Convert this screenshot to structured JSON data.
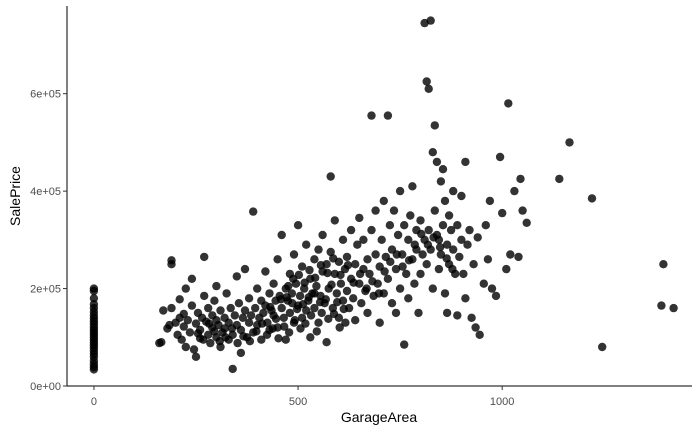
{
  "chart_data": {
    "type": "scatter",
    "title": "",
    "xlabel": "GarageArea",
    "ylabel": "SalePrice",
    "xlim": [
      -66,
      1465
    ],
    "ylim": [
      0,
      780000
    ],
    "x_ticks": [
      {
        "value": 0,
        "label": "0"
      },
      {
        "value": 500,
        "label": "500"
      },
      {
        "value": 1000,
        "label": "1000"
      }
    ],
    "y_ticks": [
      {
        "value": 0,
        "label": "0e+00"
      },
      {
        "value": 200000,
        "label": "2e+05"
      },
      {
        "value": 400000,
        "label": "4e+05"
      },
      {
        "value": 600000,
        "label": "6e+05"
      }
    ],
    "grid": false,
    "legend": "none",
    "point_color": "#000000",
    "point_opacity": 0.8,
    "points": [
      [
        0,
        200000
      ],
      [
        0,
        195000
      ],
      [
        0,
        180000
      ],
      [
        0,
        168000
      ],
      [
        0,
        160000
      ],
      [
        0,
        152000
      ],
      [
        0,
        145000
      ],
      [
        0,
        139000
      ],
      [
        0,
        133000
      ],
      [
        0,
        127000
      ],
      [
        0,
        121000
      ],
      [
        0,
        115000
      ],
      [
        0,
        110000
      ],
      [
        0,
        105000
      ],
      [
        0,
        100000
      ],
      [
        0,
        95000
      ],
      [
        0,
        89000
      ],
      [
        0,
        84000
      ],
      [
        0,
        78000
      ],
      [
        0,
        72000
      ],
      [
        0,
        66000
      ],
      [
        0,
        60000
      ],
      [
        0,
        52000
      ],
      [
        0,
        45000
      ],
      [
        0,
        39000
      ],
      [
        0,
        34000
      ],
      [
        160,
        88000
      ],
      [
        165,
        90000
      ],
      [
        170,
        155000
      ],
      [
        180,
        118000
      ],
      [
        185,
        125000
      ],
      [
        190,
        160000
      ],
      [
        190,
        250000
      ],
      [
        190,
        258000
      ],
      [
        200,
        130000
      ],
      [
        205,
        105000
      ],
      [
        210,
        140000
      ],
      [
        210,
        178000
      ],
      [
        215,
        95000
      ],
      [
        220,
        122000
      ],
      [
        220,
        148000
      ],
      [
        225,
        80000
      ],
      [
        225,
        200000
      ],
      [
        230,
        135000
      ],
      [
        235,
        110000
      ],
      [
        240,
        165000
      ],
      [
        240,
        220000
      ],
      [
        245,
        75000
      ],
      [
        250,
        128000
      ],
      [
        250,
        60000
      ],
      [
        255,
        150000
      ],
      [
        260,
        98000
      ],
      [
        260,
        115000
      ],
      [
        265,
        140000
      ],
      [
        270,
        185000
      ],
      [
        270,
        265000
      ],
      [
        275,
        132000
      ],
      [
        280,
        105000
      ],
      [
        280,
        160000
      ],
      [
        285,
        88000
      ],
      [
        290,
        120000
      ],
      [
        290,
        145000
      ],
      [
        295,
        175000
      ],
      [
        300,
        100000
      ],
      [
        300,
        135000
      ],
      [
        300,
        205000
      ],
      [
        305,
        125000
      ],
      [
        310,
        80000
      ],
      [
        310,
        155000
      ],
      [
        315,
        110000
      ],
      [
        320,
        140000
      ],
      [
        320,
        118000
      ],
      [
        325,
        190000
      ],
      [
        330,
        95000
      ],
      [
        330,
        130000
      ],
      [
        335,
        160000
      ],
      [
        340,
        105000
      ],
      [
        340,
        35000
      ],
      [
        345,
        145000
      ],
      [
        350,
        125000
      ],
      [
        350,
        225000
      ],
      [
        355,
        170000
      ],
      [
        360,
        115000
      ],
      [
        360,
        68000
      ],
      [
        365,
        140000
      ],
      [
        370,
        155000
      ],
      [
        370,
        240000
      ],
      [
        375,
        100000
      ],
      [
        380,
        130000
      ],
      [
        380,
        180000
      ],
      [
        385,
        145000
      ],
      [
        390,
        110000
      ],
      [
        390,
        358000
      ],
      [
        395,
        160000
      ],
      [
        400,
        125000
      ],
      [
        400,
        200000
      ],
      [
        405,
        140000
      ],
      [
        410,
        175000
      ],
      [
        410,
        95000
      ],
      [
        415,
        150000
      ],
      [
        420,
        165000
      ],
      [
        420,
        235000
      ],
      [
        425,
        130000
      ],
      [
        430,
        190000
      ],
      [
        430,
        115000
      ],
      [
        435,
        155000
      ],
      [
        440,
        210000
      ],
      [
        440,
        145000
      ],
      [
        445,
        175000
      ],
      [
        450,
        120000
      ],
      [
        450,
        260000
      ],
      [
        455,
        185000
      ],
      [
        460,
        160000
      ],
      [
        460,
        310000
      ],
      [
        465,
        140000
      ],
      [
        470,
        200000
      ],
      [
        470,
        95000
      ],
      [
        475,
        175000
      ],
      [
        480,
        230000
      ],
      [
        480,
        150000
      ],
      [
        485,
        190000
      ],
      [
        490,
        270000
      ],
      [
        490,
        130000
      ],
      [
        495,
        210000
      ],
      [
        500,
        165000
      ],
      [
        500,
        330000
      ],
      [
        505,
        185000
      ],
      [
        510,
        245000
      ],
      [
        510,
        140000
      ],
      [
        515,
        200000
      ],
      [
        520,
        155000
      ],
      [
        520,
        290000
      ],
      [
        525,
        175000
      ],
      [
        530,
        220000
      ],
      [
        530,
        100000
      ],
      [
        535,
        190000
      ],
      [
        540,
        260000
      ],
      [
        540,
        160000
      ],
      [
        545,
        205000
      ],
      [
        550,
        130000
      ],
      [
        550,
        280000
      ],
      [
        555,
        185000
      ],
      [
        560,
        235000
      ],
      [
        560,
        310000
      ],
      [
        565,
        170000
      ],
      [
        570,
        250000
      ],
      [
        570,
        90000
      ],
      [
        575,
        200000
      ],
      [
        580,
        275000
      ],
      [
        580,
        430000
      ],
      [
        585,
        160000
      ],
      [
        590,
        230000
      ],
      [
        590,
        340000
      ],
      [
        595,
        190000
      ],
      [
        600,
        255000
      ],
      [
        600,
        140000
      ],
      [
        605,
        210000
      ],
      [
        610,
        300000
      ],
      [
        610,
        175000
      ],
      [
        615,
        240000
      ],
      [
        620,
        195000
      ],
      [
        620,
        265000
      ],
      [
        625,
        160000
      ],
      [
        630,
        320000
      ],
      [
        630,
        220000
      ],
      [
        635,
        180000
      ],
      [
        640,
        250000
      ],
      [
        640,
        135000
      ],
      [
        645,
        290000
      ],
      [
        650,
        210000
      ],
      [
        650,
        345000
      ],
      [
        655,
        170000
      ],
      [
        660,
        240000
      ],
      [
        660,
        300000
      ],
      [
        665,
        195000
      ],
      [
        670,
        260000
      ],
      [
        670,
        150000
      ],
      [
        675,
        230000
      ],
      [
        680,
        320000
      ],
      [
        680,
        555000
      ],
      [
        685,
        185000
      ],
      [
        690,
        270000
      ],
      [
        690,
        360000
      ],
      [
        695,
        210000
      ],
      [
        700,
        245000
      ],
      [
        700,
        130000
      ],
      [
        705,
        300000
      ],
      [
        710,
        190000
      ],
      [
        710,
        380000
      ],
      [
        715,
        265000
      ],
      [
        720,
        220000
      ],
      [
        720,
        555000
      ],
      [
        725,
        330000
      ],
      [
        730,
        170000
      ],
      [
        730,
        280000
      ],
      [
        735,
        360000
      ],
      [
        740,
        240000
      ],
      [
        740,
        150000
      ],
      [
        745,
        310000
      ],
      [
        750,
        200000
      ],
      [
        750,
        400000
      ],
      [
        755,
        270000
      ],
      [
        760,
        330000
      ],
      [
        760,
        85000
      ],
      [
        765,
        230000
      ],
      [
        770,
        300000
      ],
      [
        770,
        180000
      ],
      [
        775,
        350000
      ],
      [
        780,
        260000
      ],
      [
        780,
        410000
      ],
      [
        785,
        210000
      ],
      [
        790,
        320000
      ],
      [
        790,
        280000
      ],
      [
        795,
        150000
      ],
      [
        800,
        340000
      ],
      [
        800,
        230000
      ],
      [
        805,
        270000
      ],
      [
        810,
        300000
      ],
      [
        810,
        745000
      ],
      [
        815,
        250000
      ],
      [
        815,
        625000
      ],
      [
        820,
        320000
      ],
      [
        820,
        610000
      ],
      [
        825,
        750000
      ],
      [
        825,
        280000
      ],
      [
        830,
        200000
      ],
      [
        830,
        480000
      ],
      [
        835,
        360000
      ],
      [
        835,
        535000
      ],
      [
        840,
        310000
      ],
      [
        840,
        460000
      ],
      [
        845,
        240000
      ],
      [
        845,
        300000
      ],
      [
        850,
        420000
      ],
      [
        850,
        270000
      ],
      [
        855,
        330000
      ],
      [
        855,
        445000
      ],
      [
        860,
        190000
      ],
      [
        860,
        380000
      ],
      [
        865,
        290000
      ],
      [
        865,
        150000
      ],
      [
        870,
        350000
      ],
      [
        870,
        250000
      ],
      [
        875,
        320000
      ],
      [
        880,
        280000
      ],
      [
        880,
        400000
      ],
      [
        885,
        230000
      ],
      [
        890,
        330000
      ],
      [
        890,
        145000
      ],
      [
        895,
        265000
      ],
      [
        900,
        300000
      ],
      [
        900,
        390000
      ],
      [
        905,
        230000
      ],
      [
        910,
        460000
      ],
      [
        910,
        180000
      ],
      [
        915,
        290000
      ],
      [
        920,
        320000
      ],
      [
        925,
        140000
      ],
      [
        930,
        250000
      ],
      [
        935,
        120000
      ],
      [
        940,
        305000
      ],
      [
        945,
        105000
      ],
      [
        955,
        210000
      ],
      [
        960,
        330000
      ],
      [
        965,
        260000
      ],
      [
        970,
        380000
      ],
      [
        975,
        200000
      ],
      [
        985,
        185000
      ],
      [
        995,
        470000
      ],
      [
        1000,
        355000
      ],
      [
        1010,
        240000
      ],
      [
        1015,
        580000
      ],
      [
        1020,
        270000
      ],
      [
        1030,
        400000
      ],
      [
        1040,
        265000
      ],
      [
        1045,
        425000
      ],
      [
        1050,
        360000
      ],
      [
        1060,
        335000
      ],
      [
        1140,
        425000
      ],
      [
        1165,
        500000
      ],
      [
        1220,
        385000
      ],
      [
        1245,
        80000
      ],
      [
        1390,
        165000
      ],
      [
        1395,
        250000
      ],
      [
        1420,
        160000
      ],
      [
        255,
        108000
      ],
      [
        268,
        95000
      ],
      [
        282,
        128000
      ],
      [
        295,
        112000
      ],
      [
        308,
        92000
      ],
      [
        322,
        100000
      ],
      [
        338,
        118000
      ],
      [
        352,
        88000
      ],
      [
        366,
        102000
      ],
      [
        382,
        92000
      ],
      [
        398,
        112000
      ],
      [
        412,
        128000
      ],
      [
        424,
        105000
      ],
      [
        438,
        118000
      ],
      [
        452,
        98000
      ],
      [
        466,
        122000
      ],
      [
        478,
        110000
      ],
      [
        492,
        135000
      ],
      [
        506,
        118000
      ],
      [
        518,
        128000
      ],
      [
        532,
        145000
      ],
      [
        546,
        112000
      ],
      [
        558,
        150000
      ],
      [
        574,
        138000
      ],
      [
        588,
        148000
      ],
      [
        602,
        120000
      ],
      [
        616,
        130000
      ],
      [
        432,
        162000
      ],
      [
        446,
        138000
      ],
      [
        458,
        178000
      ],
      [
        472,
        182000
      ],
      [
        486,
        170000
      ],
      [
        498,
        158000
      ],
      [
        512,
        168000
      ],
      [
        526,
        182000
      ],
      [
        540,
        190000
      ],
      [
        554,
        172000
      ],
      [
        568,
        178000
      ],
      [
        582,
        208000
      ],
      [
        596,
        172000
      ],
      [
        612,
        158000
      ],
      [
        476,
        205000
      ],
      [
        488,
        220000
      ],
      [
        502,
        228000
      ],
      [
        516,
        212000
      ],
      [
        528,
        238000
      ],
      [
        542,
        222000
      ],
      [
        556,
        248000
      ],
      [
        572,
        232000
      ],
      [
        586,
        262000
      ],
      [
        604,
        228000
      ],
      [
        622,
        248000
      ],
      [
        636,
        212000
      ],
      [
        652,
        230000
      ],
      [
        668,
        200000
      ],
      [
        682,
        215000
      ],
      [
        698,
        190000
      ],
      [
        712,
        235000
      ],
      [
        726,
        255000
      ],
      [
        742,
        270000
      ],
      [
        756,
        245000
      ],
      [
        772,
        258000
      ],
      [
        786,
        290000
      ],
      [
        802,
        312000
      ],
      [
        818,
        290000
      ],
      [
        832,
        305000
      ],
      [
        848,
        285000
      ],
      [
        864,
        262000
      ],
      [
        878,
        240000
      ]
    ]
  }
}
